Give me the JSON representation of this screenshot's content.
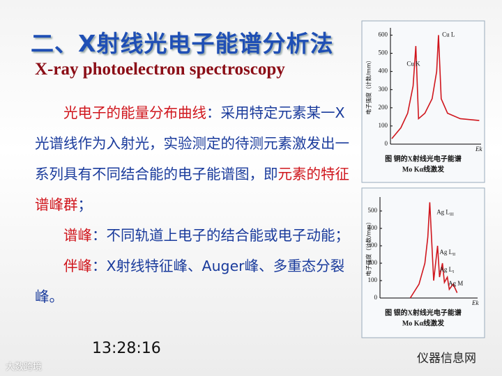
{
  "title": "二、X射线光电子能谱分析法",
  "subtitle": "X-ray photoelectron spectroscopy",
  "paragraphs": [
    [
      {
        "text": "光电子的能量分布曲线",
        "color": "#d0161d"
      },
      {
        "text": "：采用特定元素某一X光谱线作为入射光，实验测定的待测元素激发出一系列具有不同结合能的电子能谱图，即",
        "color": "#1a3b9c"
      },
      {
        "text": "元素的特征谱峰群",
        "color": "#d0161d"
      },
      {
        "text": "；",
        "color": "#1a3b9c"
      }
    ],
    [
      {
        "text": "谱峰",
        "color": "#d0161d"
      },
      {
        "text": "：不同轨道上电子的结合能或电子动能；",
        "color": "#1a3b9c"
      }
    ],
    [
      {
        "text": "伴峰",
        "color": "#d0161d"
      },
      {
        "text": "：X射线特征峰、Auger峰、多重态分裂峰。",
        "color": "#1a3b9c"
      }
    ]
  ],
  "time": "13:28:16",
  "watermark_left": "大数跨境",
  "watermark_right": "仪器信息网",
  "chart_data": [
    {
      "type": "line",
      "ylabel": "电子强度（计数/mm）",
      "xlabel": "Ek",
      "caption": [
        "图  铜的X射线光电子能谱",
        "Mo Kα线激发"
      ],
      "color": "#d0161d",
      "xlim": [
        0,
        100
      ],
      "ylim": [
        0,
        640
      ],
      "yticks": [
        0,
        100,
        200,
        300,
        400,
        500,
        600
      ],
      "x": [
        1.5,
        11.5,
        19,
        25,
        28,
        31,
        38,
        46,
        51,
        53,
        56,
        63,
        77,
        98
      ],
      "values": [
        30,
        90,
        170,
        320,
        540,
        140,
        170,
        250,
        400,
        600,
        250,
        170,
        140,
        130
      ],
      "annotations": [
        {
          "text": "Cu K",
          "x": 18,
          "y": 440
        },
        {
          "text": "Cu L",
          "x": 57,
          "y": 600
        }
      ]
    },
    {
      "type": "line",
      "ylabel": "电子强度（计数/mm）",
      "xlabel": "Ek",
      "caption": [
        "图  银的X射线光电子能谱",
        "Mo Kα线激发"
      ],
      "color": "#d0161d",
      "xlim": [
        0,
        100
      ],
      "ylim": [
        0,
        580
      ],
      "yticks": [
        0,
        100,
        200,
        300,
        400,
        500
      ],
      "x": [
        31,
        40,
        46,
        49,
        51,
        55,
        59,
        61,
        64,
        66,
        69,
        71,
        75,
        79
      ],
      "values": [
        0,
        80,
        200,
        350,
        550,
        100,
        300,
        120,
        200,
        90,
        120,
        50,
        80,
        30
      ],
      "annotations": [
        {
          "text": "Ag L",
          "sub": "III",
          "x": 58,
          "y": 490
        },
        {
          "text": "Ag L",
          "sub": "II",
          "x": 61,
          "y": 260
        },
        {
          "text": "Ag L",
          "sub": "I",
          "x": 61,
          "y": 160
        },
        {
          "text": "Ag M",
          "x": 70,
          "y": 80
        }
      ]
    }
  ]
}
